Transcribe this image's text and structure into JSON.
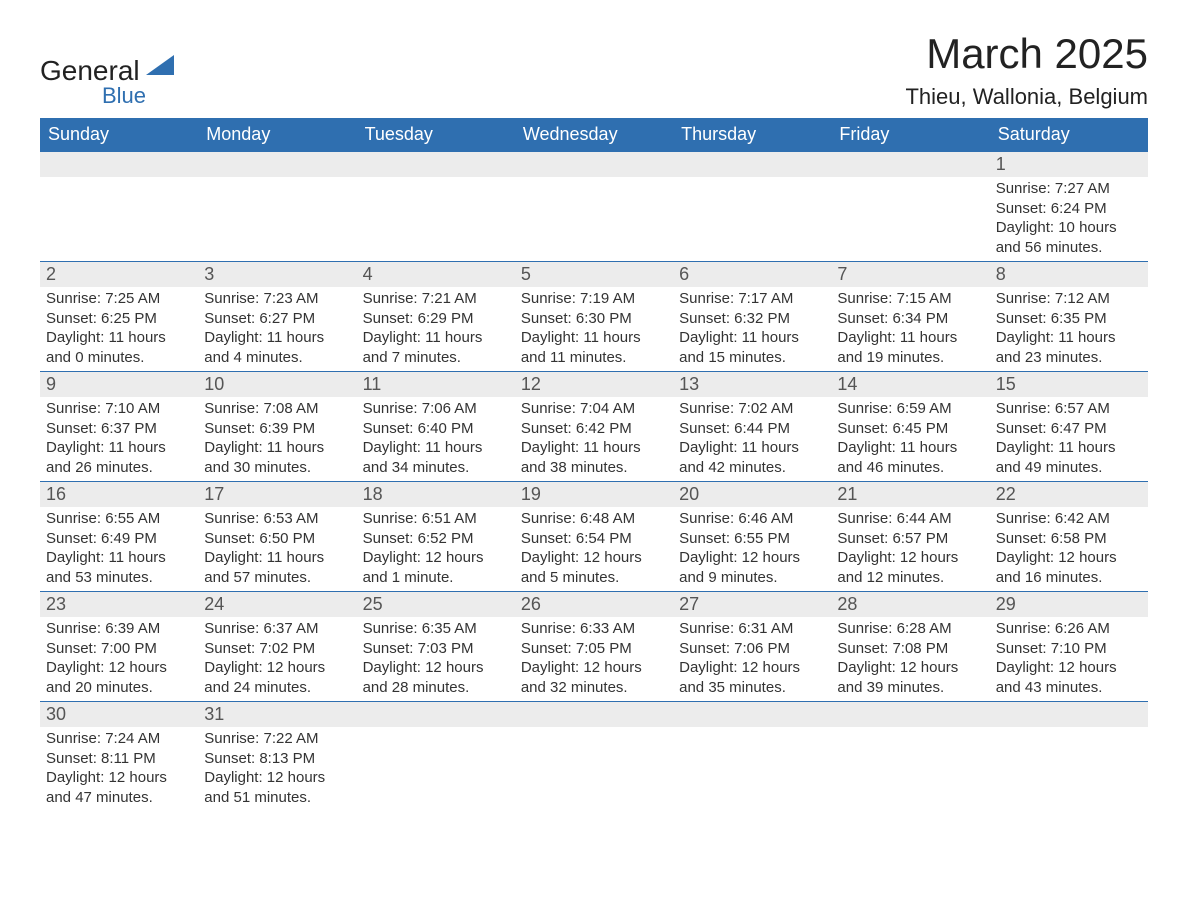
{
  "logo": {
    "line1": "General",
    "line2": "Blue",
    "triangle_color": "#2f6fb0"
  },
  "title": "March 2025",
  "location": "Thieu, Wallonia, Belgium",
  "header_bg": "#2f6fb0",
  "header_fg": "#ffffff",
  "daynum_bg": "#ececec",
  "border_color": "#2f6fb0",
  "day_names": [
    "Sunday",
    "Monday",
    "Tuesday",
    "Wednesday",
    "Thursday",
    "Friday",
    "Saturday"
  ],
  "weeks": [
    [
      null,
      null,
      null,
      null,
      null,
      null,
      {
        "n": "1",
        "sunrise": "Sunrise: 7:27 AM",
        "sunset": "Sunset: 6:24 PM",
        "daylight": "Daylight: 10 hours and 56 minutes."
      }
    ],
    [
      {
        "n": "2",
        "sunrise": "Sunrise: 7:25 AM",
        "sunset": "Sunset: 6:25 PM",
        "daylight": "Daylight: 11 hours and 0 minutes."
      },
      {
        "n": "3",
        "sunrise": "Sunrise: 7:23 AM",
        "sunset": "Sunset: 6:27 PM",
        "daylight": "Daylight: 11 hours and 4 minutes."
      },
      {
        "n": "4",
        "sunrise": "Sunrise: 7:21 AM",
        "sunset": "Sunset: 6:29 PM",
        "daylight": "Daylight: 11 hours and 7 minutes."
      },
      {
        "n": "5",
        "sunrise": "Sunrise: 7:19 AM",
        "sunset": "Sunset: 6:30 PM",
        "daylight": "Daylight: 11 hours and 11 minutes."
      },
      {
        "n": "6",
        "sunrise": "Sunrise: 7:17 AM",
        "sunset": "Sunset: 6:32 PM",
        "daylight": "Daylight: 11 hours and 15 minutes."
      },
      {
        "n": "7",
        "sunrise": "Sunrise: 7:15 AM",
        "sunset": "Sunset: 6:34 PM",
        "daylight": "Daylight: 11 hours and 19 minutes."
      },
      {
        "n": "8",
        "sunrise": "Sunrise: 7:12 AM",
        "sunset": "Sunset: 6:35 PM",
        "daylight": "Daylight: 11 hours and 23 minutes."
      }
    ],
    [
      {
        "n": "9",
        "sunrise": "Sunrise: 7:10 AM",
        "sunset": "Sunset: 6:37 PM",
        "daylight": "Daylight: 11 hours and 26 minutes."
      },
      {
        "n": "10",
        "sunrise": "Sunrise: 7:08 AM",
        "sunset": "Sunset: 6:39 PM",
        "daylight": "Daylight: 11 hours and 30 minutes."
      },
      {
        "n": "11",
        "sunrise": "Sunrise: 7:06 AM",
        "sunset": "Sunset: 6:40 PM",
        "daylight": "Daylight: 11 hours and 34 minutes."
      },
      {
        "n": "12",
        "sunrise": "Sunrise: 7:04 AM",
        "sunset": "Sunset: 6:42 PM",
        "daylight": "Daylight: 11 hours and 38 minutes."
      },
      {
        "n": "13",
        "sunrise": "Sunrise: 7:02 AM",
        "sunset": "Sunset: 6:44 PM",
        "daylight": "Daylight: 11 hours and 42 minutes."
      },
      {
        "n": "14",
        "sunrise": "Sunrise: 6:59 AM",
        "sunset": "Sunset: 6:45 PM",
        "daylight": "Daylight: 11 hours and 46 minutes."
      },
      {
        "n": "15",
        "sunrise": "Sunrise: 6:57 AM",
        "sunset": "Sunset: 6:47 PM",
        "daylight": "Daylight: 11 hours and 49 minutes."
      }
    ],
    [
      {
        "n": "16",
        "sunrise": "Sunrise: 6:55 AM",
        "sunset": "Sunset: 6:49 PM",
        "daylight": "Daylight: 11 hours and 53 minutes."
      },
      {
        "n": "17",
        "sunrise": "Sunrise: 6:53 AM",
        "sunset": "Sunset: 6:50 PM",
        "daylight": "Daylight: 11 hours and 57 minutes."
      },
      {
        "n": "18",
        "sunrise": "Sunrise: 6:51 AM",
        "sunset": "Sunset: 6:52 PM",
        "daylight": "Daylight: 12 hours and 1 minute."
      },
      {
        "n": "19",
        "sunrise": "Sunrise: 6:48 AM",
        "sunset": "Sunset: 6:54 PM",
        "daylight": "Daylight: 12 hours and 5 minutes."
      },
      {
        "n": "20",
        "sunrise": "Sunrise: 6:46 AM",
        "sunset": "Sunset: 6:55 PM",
        "daylight": "Daylight: 12 hours and 9 minutes."
      },
      {
        "n": "21",
        "sunrise": "Sunrise: 6:44 AM",
        "sunset": "Sunset: 6:57 PM",
        "daylight": "Daylight: 12 hours and 12 minutes."
      },
      {
        "n": "22",
        "sunrise": "Sunrise: 6:42 AM",
        "sunset": "Sunset: 6:58 PM",
        "daylight": "Daylight: 12 hours and 16 minutes."
      }
    ],
    [
      {
        "n": "23",
        "sunrise": "Sunrise: 6:39 AM",
        "sunset": "Sunset: 7:00 PM",
        "daylight": "Daylight: 12 hours and 20 minutes."
      },
      {
        "n": "24",
        "sunrise": "Sunrise: 6:37 AM",
        "sunset": "Sunset: 7:02 PM",
        "daylight": "Daylight: 12 hours and 24 minutes."
      },
      {
        "n": "25",
        "sunrise": "Sunrise: 6:35 AM",
        "sunset": "Sunset: 7:03 PM",
        "daylight": "Daylight: 12 hours and 28 minutes."
      },
      {
        "n": "26",
        "sunrise": "Sunrise: 6:33 AM",
        "sunset": "Sunset: 7:05 PM",
        "daylight": "Daylight: 12 hours and 32 minutes."
      },
      {
        "n": "27",
        "sunrise": "Sunrise: 6:31 AM",
        "sunset": "Sunset: 7:06 PM",
        "daylight": "Daylight: 12 hours and 35 minutes."
      },
      {
        "n": "28",
        "sunrise": "Sunrise: 6:28 AM",
        "sunset": "Sunset: 7:08 PM",
        "daylight": "Daylight: 12 hours and 39 minutes."
      },
      {
        "n": "29",
        "sunrise": "Sunrise: 6:26 AM",
        "sunset": "Sunset: 7:10 PM",
        "daylight": "Daylight: 12 hours and 43 minutes."
      }
    ],
    [
      {
        "n": "30",
        "sunrise": "Sunrise: 7:24 AM",
        "sunset": "Sunset: 8:11 PM",
        "daylight": "Daylight: 12 hours and 47 minutes."
      },
      {
        "n": "31",
        "sunrise": "Sunrise: 7:22 AM",
        "sunset": "Sunset: 8:13 PM",
        "daylight": "Daylight: 12 hours and 51 minutes."
      },
      null,
      null,
      null,
      null,
      null
    ]
  ]
}
